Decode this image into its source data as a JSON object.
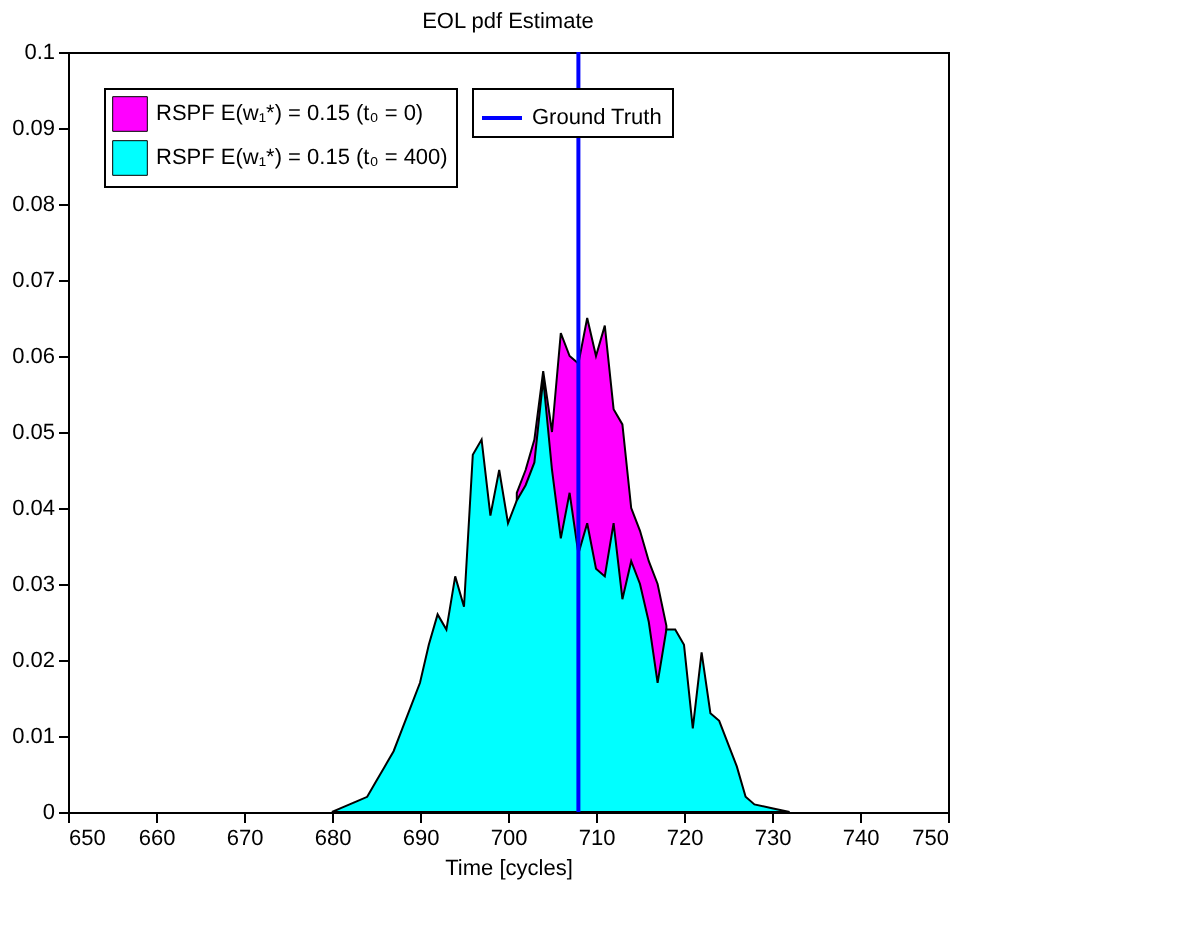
{
  "chart_data": {
    "type": "area",
    "title": "EOL pdf Estimate",
    "xlabel": "Time [cycles]",
    "series": [
      {
        "name": "RSPF E(w₁*) = 0.15 (t₀ = 0)",
        "color": "#ff00ff",
        "x": [
          701,
          702,
          703,
          704,
          705,
          706,
          707,
          708,
          709,
          710,
          711,
          712,
          713,
          714,
          715,
          716,
          717,
          718
        ],
        "values": [
          0.042,
          0.045,
          0.049,
          0.058,
          0.05,
          0.063,
          0.06,
          0.059,
          0.065,
          0.06,
          0.064,
          0.053,
          0.051,
          0.04,
          0.037,
          0.033,
          0.03,
          0.0245
        ]
      },
      {
        "name": "RSPF E(w₁*) = 0.15 (t₀ = 400)",
        "color": "#00ffff",
        "x": [
          680,
          681,
          682,
          683,
          684,
          685,
          686,
          687,
          688,
          689,
          690,
          691,
          692,
          693,
          694,
          695,
          696,
          697,
          698,
          699,
          700,
          701,
          702,
          703,
          704,
          705,
          706,
          707,
          708,
          709,
          710,
          711,
          712,
          713,
          714,
          715,
          716,
          717,
          718,
          719,
          720,
          721,
          722,
          723,
          724,
          725,
          726,
          727,
          728,
          730,
          732
        ],
        "values": [
          0,
          0.0005,
          0.001,
          0.0015,
          0.002,
          0.004,
          0.006,
          0.008,
          0.011,
          0.014,
          0.017,
          0.022,
          0.026,
          0.024,
          0.031,
          0.027,
          0.047,
          0.049,
          0.039,
          0.045,
          0.038,
          0.041,
          0.043,
          0.046,
          0.057,
          0.045,
          0.036,
          0.042,
          0.034,
          0.038,
          0.032,
          0.031,
          0.038,
          0.028,
          0.033,
          0.03,
          0.025,
          0.017,
          0.024,
          0.024,
          0.022,
          0.011,
          0.021,
          0.013,
          0.012,
          0.009,
          0.006,
          0.002,
          0.001,
          0.0005,
          0
        ]
      }
    ],
    "ref_lines": [
      {
        "axis": "x",
        "value": 708,
        "label": "Ground Truth",
        "color": "#0000ff"
      }
    ],
    "xlim": [
      650,
      750
    ],
    "xticks": [
      650,
      660,
      670,
      680,
      690,
      700,
      710,
      720,
      730,
      740,
      750
    ],
    "ylim": [
      0,
      0.1
    ],
    "yticks": [
      0,
      0.01,
      0.02,
      0.03,
      0.04,
      0.05,
      0.06,
      0.07,
      0.08,
      0.09,
      0.1
    ],
    "grid": false,
    "legend": "top left"
  }
}
